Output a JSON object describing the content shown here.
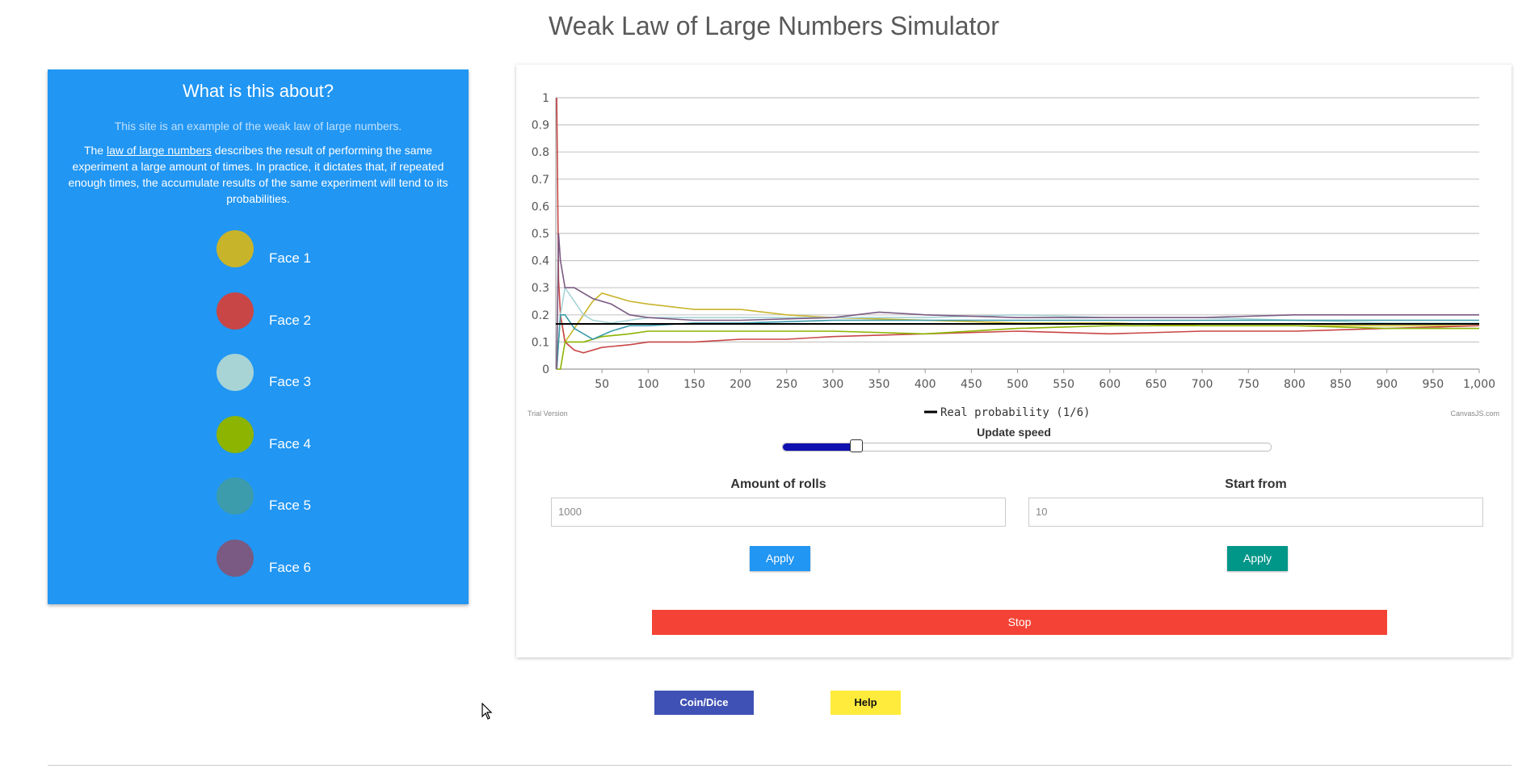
{
  "title": "Weak Law of Large Numbers Simulator",
  "info": {
    "heading": "What is this about?",
    "subtitle": "This site is an example of the weak law of large numbers.",
    "desc_prefix": "The ",
    "desc_link": "law of large numbers",
    "desc_suffix": " describes the result of performing the same experiment a large amount of times. In practice, it dictates that, if repeated enough times, the accumulate results of the same experiment will tend to its probabilities.",
    "faces": [
      {
        "label": "Face 1",
        "color": "#C8B42A"
      },
      {
        "label": "Face 2",
        "color": "#C84646"
      },
      {
        "label": "Face 3",
        "color": "#A8D4D6"
      },
      {
        "label": "Face 4",
        "color": "#8CB400"
      },
      {
        "label": "Face 5",
        "color": "#3C9CAC"
      },
      {
        "label": "Face 6",
        "color": "#7A5A82"
      }
    ]
  },
  "chart": {
    "trial_text": "Trial Version",
    "credit_text": "CanvasJS.com",
    "legend_label": "Real probability (1/6)",
    "speed_label": "Update speed",
    "speed_value": 0.15
  },
  "chart_data": {
    "type": "line",
    "xlim": [
      0,
      1000
    ],
    "ylim": [
      0,
      1
    ],
    "x_ticks": [
      "50",
      "100",
      "150",
      "200",
      "250",
      "300",
      "350",
      "400",
      "450",
      "500",
      "550",
      "600",
      "650",
      "700",
      "750",
      "800",
      "850",
      "900",
      "950",
      "1,000"
    ],
    "y_ticks": [
      "0",
      "0.1",
      "0.2",
      "0.3",
      "0.4",
      "0.5",
      "0.6",
      "0.7",
      "0.8",
      "0.9",
      "1"
    ],
    "reference_line": {
      "name": "Real probability (1/6)",
      "value": 0.1667,
      "color": "#000000"
    },
    "series": [
      {
        "color": "#C8B42A",
        "points": [
          [
            1,
            0
          ],
          [
            5,
            0.2
          ],
          [
            10,
            0.1
          ],
          [
            20,
            0.15
          ],
          [
            30,
            0.2
          ],
          [
            40,
            0.25
          ],
          [
            50,
            0.28
          ],
          [
            60,
            0.27
          ],
          [
            80,
            0.25
          ],
          [
            100,
            0.24
          ],
          [
            150,
            0.22
          ],
          [
            200,
            0.22
          ],
          [
            250,
            0.2
          ],
          [
            300,
            0.19
          ],
          [
            400,
            0.18
          ],
          [
            500,
            0.17
          ],
          [
            600,
            0.17
          ],
          [
            700,
            0.16
          ],
          [
            800,
            0.16
          ],
          [
            900,
            0.16
          ],
          [
            1000,
            0.16
          ]
        ]
      },
      {
        "color": "#C84646",
        "points": [
          [
            1,
            1
          ],
          [
            3,
            0.33
          ],
          [
            5,
            0.2
          ],
          [
            10,
            0.1
          ],
          [
            20,
            0.07
          ],
          [
            30,
            0.06
          ],
          [
            50,
            0.08
          ],
          [
            80,
            0.09
          ],
          [
            100,
            0.1
          ],
          [
            150,
            0.1
          ],
          [
            200,
            0.11
          ],
          [
            250,
            0.11
          ],
          [
            300,
            0.12
          ],
          [
            400,
            0.13
          ],
          [
            500,
            0.14
          ],
          [
            600,
            0.13
          ],
          [
            700,
            0.14
          ],
          [
            800,
            0.14
          ],
          [
            900,
            0.15
          ],
          [
            1000,
            0.16
          ]
        ]
      },
      {
        "color": "#A8D4D6",
        "points": [
          [
            1,
            0
          ],
          [
            5,
            0.2
          ],
          [
            10,
            0.3
          ],
          [
            20,
            0.25
          ],
          [
            30,
            0.2
          ],
          [
            40,
            0.18
          ],
          [
            60,
            0.17
          ],
          [
            80,
            0.18
          ],
          [
            100,
            0.19
          ],
          [
            150,
            0.19
          ],
          [
            200,
            0.19
          ],
          [
            300,
            0.19
          ],
          [
            400,
            0.19
          ],
          [
            500,
            0.2
          ],
          [
            600,
            0.19
          ],
          [
            700,
            0.19
          ],
          [
            800,
            0.18
          ],
          [
            900,
            0.17
          ],
          [
            1000,
            0.17
          ]
        ]
      },
      {
        "color": "#8CB400",
        "points": [
          [
            1,
            0
          ],
          [
            5,
            0
          ],
          [
            10,
            0.1
          ],
          [
            20,
            0.1
          ],
          [
            30,
            0.1
          ],
          [
            50,
            0.12
          ],
          [
            80,
            0.13
          ],
          [
            100,
            0.14
          ],
          [
            150,
            0.14
          ],
          [
            200,
            0.14
          ],
          [
            250,
            0.14
          ],
          [
            300,
            0.14
          ],
          [
            400,
            0.13
          ],
          [
            500,
            0.15
          ],
          [
            600,
            0.16
          ],
          [
            700,
            0.16
          ],
          [
            800,
            0.16
          ],
          [
            900,
            0.15
          ],
          [
            1000,
            0.15
          ]
        ]
      },
      {
        "color": "#3C9CAC",
        "points": [
          [
            1,
            0
          ],
          [
            5,
            0.2
          ],
          [
            10,
            0.2
          ],
          [
            20,
            0.15
          ],
          [
            30,
            0.13
          ],
          [
            40,
            0.11
          ],
          [
            60,
            0.14
          ],
          [
            80,
            0.16
          ],
          [
            100,
            0.16
          ],
          [
            150,
            0.17
          ],
          [
            200,
            0.17
          ],
          [
            300,
            0.18
          ],
          [
            400,
            0.18
          ],
          [
            500,
            0.18
          ],
          [
            600,
            0.18
          ],
          [
            700,
            0.18
          ],
          [
            800,
            0.18
          ],
          [
            900,
            0.18
          ],
          [
            1000,
            0.18
          ]
        ]
      },
      {
        "color": "#7A5A82",
        "points": [
          [
            1,
            0
          ],
          [
            3,
            0.5
          ],
          [
            5,
            0.4
          ],
          [
            10,
            0.3
          ],
          [
            20,
            0.3
          ],
          [
            30,
            0.28
          ],
          [
            40,
            0.26
          ],
          [
            60,
            0.24
          ],
          [
            80,
            0.2
          ],
          [
            100,
            0.19
          ],
          [
            150,
            0.18
          ],
          [
            200,
            0.18
          ],
          [
            300,
            0.19
          ],
          [
            350,
            0.21
          ],
          [
            400,
            0.2
          ],
          [
            500,
            0.19
          ],
          [
            600,
            0.19
          ],
          [
            700,
            0.19
          ],
          [
            800,
            0.2
          ],
          [
            900,
            0.2
          ],
          [
            1000,
            0.2
          ]
        ]
      }
    ]
  },
  "controls": {
    "rolls_label": "Amount of rolls",
    "rolls_value": "1000",
    "start_label": "Start from",
    "start_value": "10",
    "apply_rolls": "Apply",
    "apply_start": "Apply",
    "stop": "Stop",
    "apply_rolls_color": "#2196F3",
    "apply_start_color": "#009688"
  },
  "footer": {
    "coin_dice": "Coin/Dice",
    "help": "Help",
    "coin_dice_color": "#3F51B5",
    "help_color": "#FFEB3B"
  }
}
